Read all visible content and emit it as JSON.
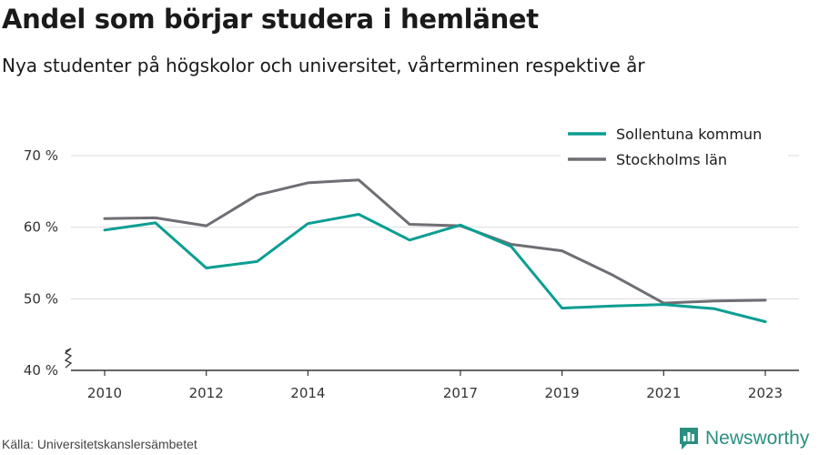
{
  "header": {
    "title": "Andel som börjar studera i hemlänet",
    "subtitle": "Nya studenter på högskolor och universitet, vårterminen respektive år"
  },
  "footer": {
    "source": "Källa: Universitetskanslersämbetet",
    "brand": "Newsworthy",
    "brand_icon": "bar-chart-logo-icon"
  },
  "colors": {
    "Sollentuna kommun": "#0a9e91",
    "Stockholms län": "#6e6e74",
    "grid": "#dcdcdc",
    "axis": "#333333",
    "brand": "#2a8f80"
  },
  "chart_data": {
    "type": "line",
    "title": "Andel som börjar studera i hemlänet",
    "subtitle": "Nya studenter på högskolor och universitet, vårterminen respektive år",
    "xlabel": "",
    "ylabel": "",
    "x": [
      2010,
      2011,
      2012,
      2013,
      2014,
      2015,
      2016,
      2017,
      2018,
      2019,
      2020,
      2021,
      2022,
      2023
    ],
    "x_ticks": [
      "2010",
      "2012",
      "2014",
      "2017",
      "2019",
      "2021",
      "2023"
    ],
    "y_ticks": [
      "40 %",
      "50 %",
      "60 %",
      "70 %"
    ],
    "ylim": [
      40,
      72
    ],
    "y_axis_break": true,
    "grid": "horizontal",
    "legend_position": "top-right",
    "series": [
      {
        "name": "Sollentuna kommun",
        "values": [
          59.6,
          60.6,
          54.3,
          55.2,
          60.5,
          61.8,
          58.2,
          60.3,
          57.3,
          48.7,
          49.0,
          49.2,
          48.6,
          46.8
        ]
      },
      {
        "name": "Stockholms län",
        "values": [
          61.2,
          61.3,
          60.2,
          64.5,
          66.2,
          66.6,
          60.4,
          60.2,
          57.6,
          56.7,
          53.3,
          49.4,
          49.7,
          49.8
        ]
      }
    ]
  }
}
